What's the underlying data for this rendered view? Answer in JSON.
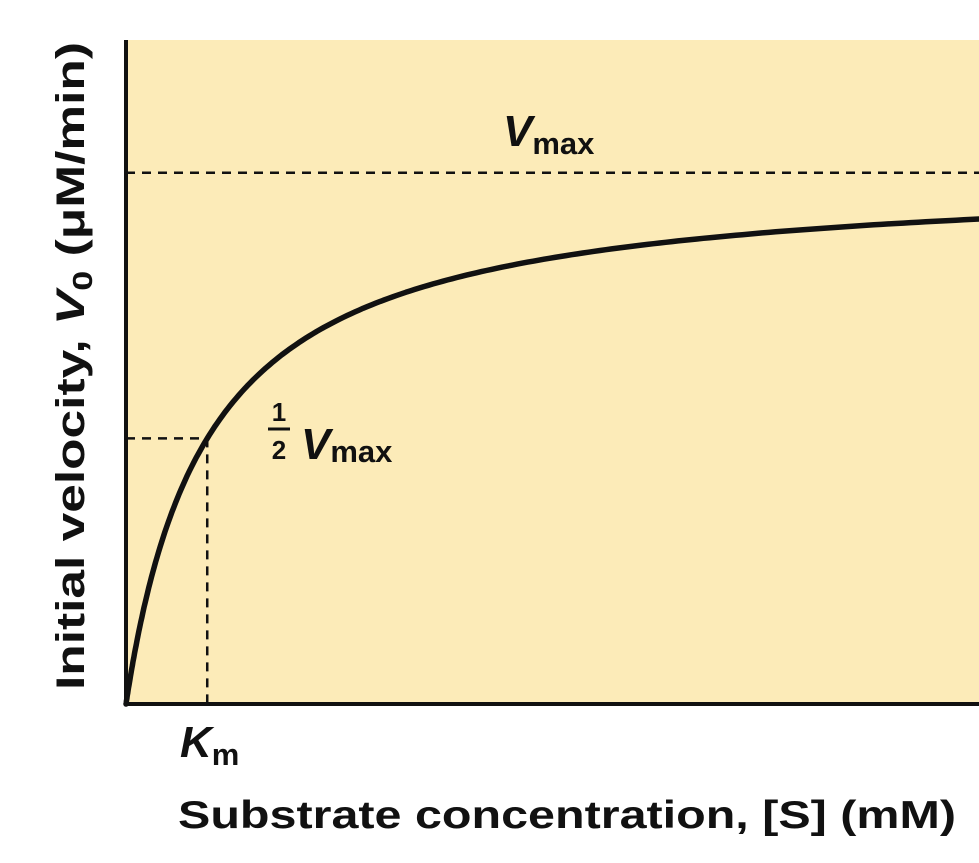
{
  "chart_data": {
    "type": "line",
    "xlabel": "Substrate concentration, [S] (mM)",
    "ylabel_prefix": "Initial velocity,",
    "ylabel_var": "V",
    "ylabel_sub": "0",
    "ylabel_unit": "(μM/min)",
    "vmax": 1,
    "km": 1,
    "xlim": [
      0,
      10.5
    ],
    "ylim": [
      0,
      1.25
    ],
    "grid": false,
    "annotations": {
      "vmax_line": {
        "var": "V",
        "sub": "max"
      },
      "half_vmax": {
        "num": "1",
        "den": "2",
        "var": "V",
        "sub": "max"
      },
      "km": {
        "var": "K",
        "sub": "m"
      }
    },
    "colors": {
      "plot_background": "#fcebb8",
      "curve": "#111111",
      "axis": "#111111"
    }
  }
}
